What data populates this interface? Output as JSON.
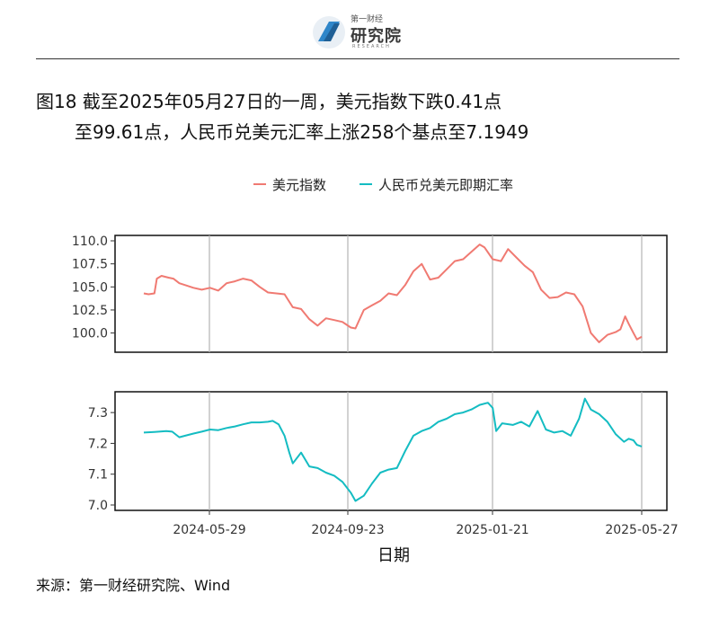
{
  "header": {
    "logo_top": "第一财经",
    "logo_main": "研究院",
    "logo_sub": "RESEARCH"
  },
  "title": {
    "line1": "图18  截至2025年05月27日的一周，美元指数下跌0.41点",
    "line2": "至99.61点，人民币兑美元汇率上涨258个基点至7.1949"
  },
  "source": "来源：第一财经研究院、Wind",
  "colors": {
    "usd_index": "#F07A72",
    "cny_rate": "#14BCC2",
    "grid": "#b5b5b5",
    "frame": "#111111"
  },
  "chart_data": {
    "type": "line",
    "xlabel": "日期",
    "x_ticks": [
      "2024-05-29",
      "2024-09-23",
      "2025-01-21",
      "2025-05-27"
    ],
    "x_range": [
      "2024-04-01",
      "2025-05-27"
    ],
    "legend": {
      "position": "top",
      "entries": [
        "美元指数",
        "人民币兑美元即期汇率"
      ]
    },
    "series": [
      {
        "name": "美元指数",
        "ylim": [
          98.5,
          110.0
        ],
        "y_ticks": [
          "110.0",
          "107.5",
          "105.0",
          "102.5",
          "100.0"
        ],
        "points": [
          [
            "2024-04-01",
            104.3
          ],
          [
            "2024-04-05",
            104.2
          ],
          [
            "2024-04-10",
            104.3
          ],
          [
            "2024-04-12",
            105.9
          ],
          [
            "2024-04-16",
            106.2
          ],
          [
            "2024-04-22",
            106.0
          ],
          [
            "2024-04-26",
            105.9
          ],
          [
            "2024-05-01",
            105.4
          ],
          [
            "2024-05-06",
            105.2
          ],
          [
            "2024-05-13",
            104.9
          ],
          [
            "2024-05-20",
            104.7
          ],
          [
            "2024-05-27",
            104.9
          ],
          [
            "2024-06-03",
            104.6
          ],
          [
            "2024-06-10",
            105.4
          ],
          [
            "2024-06-17",
            105.6
          ],
          [
            "2024-06-24",
            105.9
          ],
          [
            "2024-07-01",
            105.7
          ],
          [
            "2024-07-08",
            105.0
          ],
          [
            "2024-07-15",
            104.4
          ],
          [
            "2024-07-22",
            104.3
          ],
          [
            "2024-07-29",
            104.2
          ],
          [
            "2024-08-05",
            102.8
          ],
          [
            "2024-08-12",
            102.6
          ],
          [
            "2024-08-19",
            101.5
          ],
          [
            "2024-08-26",
            100.8
          ],
          [
            "2024-09-02",
            101.6
          ],
          [
            "2024-09-09",
            101.4
          ],
          [
            "2024-09-16",
            101.2
          ],
          [
            "2024-09-23",
            100.6
          ],
          [
            "2024-09-27",
            100.5
          ],
          [
            "2024-10-04",
            102.5
          ],
          [
            "2024-10-11",
            103.0
          ],
          [
            "2024-10-18",
            103.5
          ],
          [
            "2024-10-25",
            104.3
          ],
          [
            "2024-11-01",
            104.1
          ],
          [
            "2024-11-08",
            105.2
          ],
          [
            "2024-11-15",
            106.7
          ],
          [
            "2024-11-22",
            107.5
          ],
          [
            "2024-11-29",
            105.8
          ],
          [
            "2024-12-06",
            106.0
          ],
          [
            "2024-12-13",
            106.9
          ],
          [
            "2024-12-20",
            107.8
          ],
          [
            "2024-12-27",
            108.0
          ],
          [
            "2025-01-03",
            108.8
          ],
          [
            "2025-01-10",
            109.6
          ],
          [
            "2025-01-14",
            109.3
          ],
          [
            "2025-01-21",
            108.0
          ],
          [
            "2025-01-28",
            107.8
          ],
          [
            "2025-02-03",
            109.1
          ],
          [
            "2025-02-10",
            108.2
          ],
          [
            "2025-02-17",
            107.3
          ],
          [
            "2025-02-24",
            106.6
          ],
          [
            "2025-03-03",
            104.7
          ],
          [
            "2025-03-10",
            103.8
          ],
          [
            "2025-03-17",
            103.9
          ],
          [
            "2025-03-24",
            104.4
          ],
          [
            "2025-03-31",
            104.2
          ],
          [
            "2025-04-07",
            102.9
          ],
          [
            "2025-04-14",
            100.0
          ],
          [
            "2025-04-21",
            99.0
          ],
          [
            "2025-04-28",
            99.8
          ],
          [
            "2025-05-05",
            100.1
          ],
          [
            "2025-05-09",
            100.4
          ],
          [
            "2025-05-13",
            101.8
          ],
          [
            "2025-05-16",
            101.0
          ],
          [
            "2025-05-20",
            100.0
          ],
          [
            "2025-05-23",
            99.3
          ],
          [
            "2025-05-27",
            99.6
          ]
        ]
      },
      {
        "name": "人民币兑美元即期汇率",
        "ylim": [
          7.0,
          7.35
        ],
        "y_ticks": [
          "7.3",
          "7.2",
          "7.1",
          "7.0"
        ],
        "points": [
          [
            "2024-04-01",
            7.235
          ],
          [
            "2024-04-10",
            7.237
          ],
          [
            "2024-04-20",
            7.24
          ],
          [
            "2024-04-25",
            7.238
          ],
          [
            "2024-05-01",
            7.22
          ],
          [
            "2024-05-06",
            7.225
          ],
          [
            "2024-05-13",
            7.232
          ],
          [
            "2024-05-20",
            7.238
          ],
          [
            "2024-05-27",
            7.245
          ],
          [
            "2024-06-03",
            7.243
          ],
          [
            "2024-06-10",
            7.25
          ],
          [
            "2024-06-17",
            7.255
          ],
          [
            "2024-06-24",
            7.262
          ],
          [
            "2024-07-01",
            7.268
          ],
          [
            "2024-07-08",
            7.268
          ],
          [
            "2024-07-15",
            7.27
          ],
          [
            "2024-07-19",
            7.273
          ],
          [
            "2024-07-24",
            7.262
          ],
          [
            "2024-07-29",
            7.225
          ],
          [
            "2024-08-02",
            7.17
          ],
          [
            "2024-08-05",
            7.135
          ],
          [
            "2024-08-12",
            7.17
          ],
          [
            "2024-08-19",
            7.125
          ],
          [
            "2024-08-26",
            7.12
          ],
          [
            "2024-09-02",
            7.105
          ],
          [
            "2024-09-09",
            7.095
          ],
          [
            "2024-09-16",
            7.075
          ],
          [
            "2024-09-23",
            7.04
          ],
          [
            "2024-09-27",
            7.013
          ],
          [
            "2024-10-04",
            7.03
          ],
          [
            "2024-10-11",
            7.07
          ],
          [
            "2024-10-18",
            7.105
          ],
          [
            "2024-10-25",
            7.115
          ],
          [
            "2024-11-01",
            7.12
          ],
          [
            "2024-11-08",
            7.175
          ],
          [
            "2024-11-15",
            7.225
          ],
          [
            "2024-11-22",
            7.24
          ],
          [
            "2024-11-29",
            7.25
          ],
          [
            "2024-12-06",
            7.27
          ],
          [
            "2024-12-13",
            7.28
          ],
          [
            "2024-12-20",
            7.295
          ],
          [
            "2024-12-27",
            7.3
          ],
          [
            "2025-01-03",
            7.31
          ],
          [
            "2025-01-10",
            7.325
          ],
          [
            "2025-01-17",
            7.332
          ],
          [
            "2025-01-21",
            7.315
          ],
          [
            "2025-01-24",
            7.24
          ],
          [
            "2025-01-29",
            7.265
          ],
          [
            "2025-02-07",
            7.26
          ],
          [
            "2025-02-14",
            7.27
          ],
          [
            "2025-02-21",
            7.255
          ],
          [
            "2025-02-28",
            7.305
          ],
          [
            "2025-03-07",
            7.245
          ],
          [
            "2025-03-14",
            7.235
          ],
          [
            "2025-03-21",
            7.24
          ],
          [
            "2025-03-28",
            7.225
          ],
          [
            "2025-04-04",
            7.28
          ],
          [
            "2025-04-09",
            7.345
          ],
          [
            "2025-04-14",
            7.31
          ],
          [
            "2025-04-21",
            7.295
          ],
          [
            "2025-04-28",
            7.27
          ],
          [
            "2025-05-05",
            7.23
          ],
          [
            "2025-05-12",
            7.205
          ],
          [
            "2025-05-16",
            7.215
          ],
          [
            "2025-05-20",
            7.21
          ],
          [
            "2025-05-23",
            7.195
          ],
          [
            "2025-05-27",
            7.19
          ]
        ]
      }
    ]
  }
}
